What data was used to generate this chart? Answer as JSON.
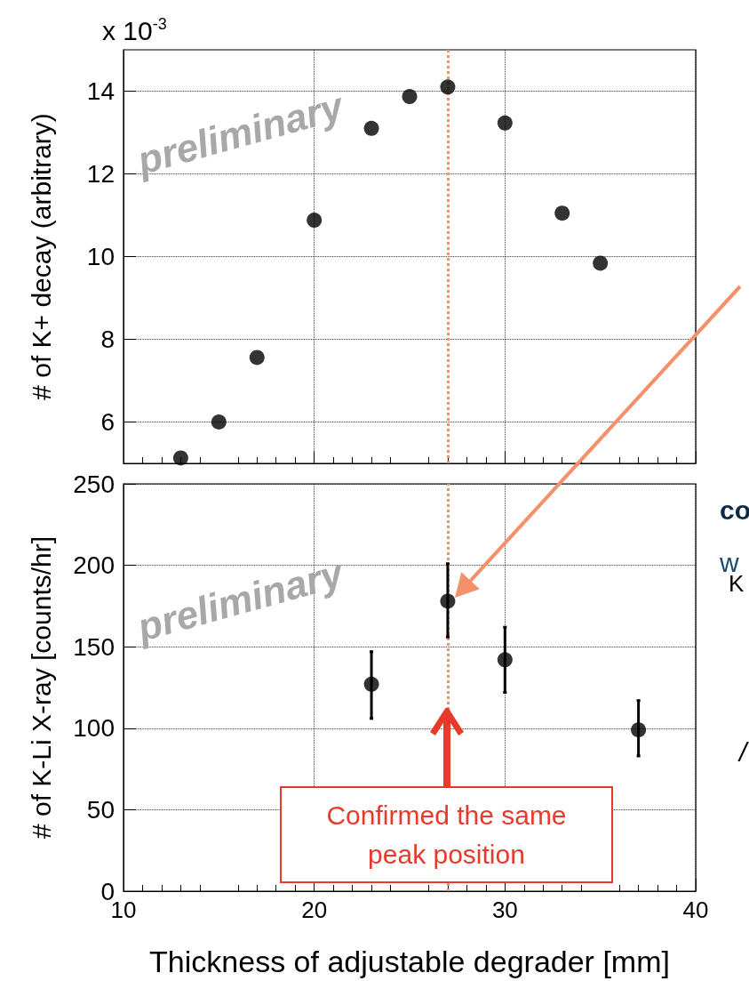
{
  "chart_data": [
    {
      "type": "scatter",
      "ylabel": "# of K+ decay (arbitrary)",
      "x": [
        13,
        15,
        17,
        20,
        23,
        25,
        27,
        30,
        33,
        35
      ],
      "values": [
        5.13,
        6.0,
        7.56,
        10.88,
        13.1,
        13.87,
        14.1,
        13.23,
        11.05,
        9.84
      ],
      "color": "#000000",
      "marker": "circle",
      "xlim": [
        10,
        40
      ],
      "xticks": [
        10,
        20,
        30,
        40
      ],
      "ylim": [
        5,
        15
      ],
      "yticks": [
        6,
        8,
        10,
        12,
        14
      ],
      "grid": true,
      "tick_labels": "y",
      "ref_lines": [
        {
          "axis": "x",
          "value": 27,
          "color": "#f4906a",
          "line_style": "dotted"
        }
      ],
      "annotations": [
        "x 10$^{-3}$",
        "preliminary"
      ]
    },
    {
      "type": "scatter",
      "xlabel": "Thickness of adjustable degrader [mm]",
      "ylabel": "# of K-Li X-ray [counts/hr]",
      "x": [
        23,
        27,
        30,
        37
      ],
      "values": [
        127,
        178,
        142,
        99
      ],
      "errors": [
        [
          106,
          147
        ],
        [
          156,
          201
        ],
        [
          122,
          162
        ],
        [
          83,
          117
        ]
      ],
      "color": "#000000",
      "marker": "circle",
      "xlim": [
        10,
        40
      ],
      "xticks": [
        10,
        20,
        30,
        40
      ],
      "ylim": [
        0,
        250
      ],
      "yticks": [
        0,
        50,
        100,
        150,
        200,
        250
      ],
      "grid": true,
      "ref_lines": [
        {
          "axis": "x",
          "value": 27,
          "color": "#f4906a",
          "line_style": "dotted"
        }
      ],
      "annotations": [
        "preliminary",
        "Confirmed the same peak position",
        "co",
        "w",
        "K",
        "/"
      ]
    }
  ]
}
